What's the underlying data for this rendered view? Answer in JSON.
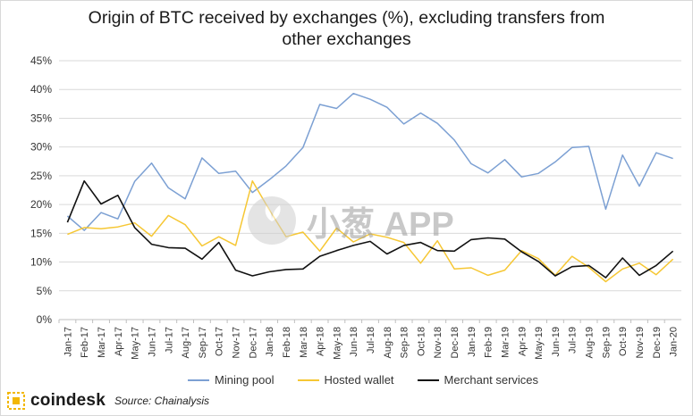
{
  "title_line1": "Origin of BTC received by exchanges (%), excluding transfers from",
  "title_line2": "other exchanges",
  "colors": {
    "mining_pool": "#7ca0d3",
    "hosted_wallet": "#f6c734",
    "merchant_services": "#111111",
    "grid": "#d9d9d9"
  },
  "footer": {
    "brand": "coindesk",
    "source": "Source: Chainalysis"
  },
  "watermark": "小葱 APP",
  "chart_data": {
    "type": "line",
    "title": "Origin of BTC received by exchanges (%), excluding transfers from other exchanges",
    "xlabel": "",
    "ylabel": "",
    "ylim": [
      0,
      45
    ],
    "y_ticks": [
      "0%",
      "5%",
      "10%",
      "15%",
      "20%",
      "25%",
      "30%",
      "35%",
      "40%",
      "45%"
    ],
    "grid": "horizontal",
    "legend_position": "bottom",
    "x": [
      "Jan-17",
      "Feb-17",
      "Mar-17",
      "Apr-17",
      "May-17",
      "Jun-17",
      "Jul-17",
      "Aug-17",
      "Sep-17",
      "Oct-17",
      "Nov-17",
      "Dec-17",
      "Jan-18",
      "Feb-18",
      "Mar-18",
      "Apr-18",
      "May-18",
      "Jun-18",
      "Jul-18",
      "Aug-18",
      "Sep-18",
      "Oct-18",
      "Nov-18",
      "Dec-18",
      "Jan-19",
      "Feb-19",
      "Mar-19",
      "Apr-19",
      "May-19",
      "Jun-19",
      "Jul-19",
      "Aug-19",
      "Sep-19",
      "Oct-19",
      "Nov-19",
      "Dec-19",
      "Jan-20"
    ],
    "series": [
      {
        "name": "Mining pool",
        "color": "#7ca0d3",
        "values": [
          18.0,
          15.5,
          18.6,
          17.5,
          24.0,
          27.2,
          22.9,
          21.0,
          28.1,
          25.4,
          25.8,
          22.1,
          24.3,
          26.7,
          29.9,
          37.4,
          36.7,
          39.3,
          38.3,
          36.9,
          34.0,
          35.9,
          34.1,
          31.2,
          27.1,
          25.5,
          27.8,
          24.8,
          25.4,
          27.4,
          29.9,
          30.1,
          19.2,
          28.6,
          23.2,
          29.0,
          28.0
        ]
      },
      {
        "name": "Hosted wallet",
        "color": "#f6c734",
        "values": [
          14.8,
          16.0,
          15.8,
          16.1,
          16.8,
          14.5,
          18.1,
          16.5,
          12.8,
          14.4,
          12.9,
          24.1,
          19.1,
          14.4,
          15.2,
          11.9,
          15.9,
          13.5,
          14.9,
          14.3,
          13.4,
          9.8,
          13.7,
          8.8,
          9.0,
          7.7,
          8.6,
          12.0,
          10.6,
          7.7,
          11.0,
          9.1,
          6.6,
          8.8,
          9.8,
          7.8,
          10.5
        ]
      },
      {
        "name": "Merchant services",
        "color": "#111111",
        "values": [
          16.9,
          24.1,
          20.1,
          21.6,
          16.0,
          13.1,
          12.5,
          12.4,
          10.5,
          13.4,
          8.6,
          7.6,
          8.3,
          8.7,
          8.8,
          11.0,
          12.0,
          12.9,
          13.6,
          11.4,
          12.9,
          13.4,
          12.0,
          11.9,
          13.9,
          14.2,
          14.0,
          11.8,
          10.1,
          7.6,
          9.2,
          9.4,
          7.3,
          10.7,
          7.7,
          9.4,
          11.9
        ]
      }
    ]
  }
}
